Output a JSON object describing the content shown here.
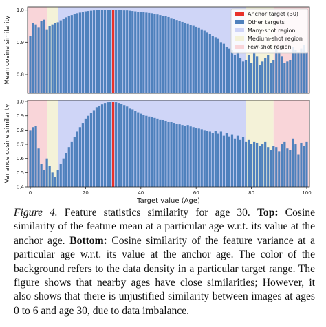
{
  "colors": {
    "bar": "#4f81bd",
    "anchor": "#e8312a",
    "many_shot": "#cfd5f7",
    "medium_shot": "#f4f2d8",
    "few_shot": "#f9d5d9"
  },
  "legend": {
    "anchor": "Anchor target (30)",
    "other": "Other targets",
    "many": "Many-shot region",
    "medium": "Medium-shot region",
    "few": "Few-shot region"
  },
  "chart_data": [
    {
      "type": "bar",
      "title": "",
      "xlabel": "",
      "ylabel": "Mean cosine similarity",
      "xlim": [
        -1,
        101
      ],
      "ylim": [
        0.74,
        1.01
      ],
      "yticks": [
        0.8,
        0.9,
        1.0
      ],
      "ytick_labels": [
        "0.8",
        "0.9",
        "1.0"
      ],
      "anchor_x": 30,
      "regions": [
        {
          "name": "Few-shot region",
          "from": -1,
          "to": 6
        },
        {
          "name": "Medium-shot region",
          "from": 6,
          "to": 10
        },
        {
          "name": "Many-shot region",
          "from": 10,
          "to": 78
        },
        {
          "name": "Medium-shot region",
          "from": 78,
          "to": 88
        },
        {
          "name": "Few-shot region",
          "from": 88,
          "to": 101
        }
      ],
      "series": [
        {
          "name": "Other targets",
          "x": [
            0,
            1,
            2,
            3,
            4,
            5,
            6,
            7,
            8,
            9,
            10,
            11,
            12,
            13,
            14,
            15,
            16,
            17,
            18,
            19,
            20,
            21,
            22,
            23,
            24,
            25,
            26,
            27,
            28,
            29,
            30,
            31,
            32,
            33,
            34,
            35,
            36,
            37,
            38,
            39,
            40,
            41,
            42,
            43,
            44,
            45,
            46,
            47,
            48,
            49,
            50,
            51,
            52,
            53,
            54,
            55,
            56,
            57,
            58,
            59,
            60,
            61,
            62,
            63,
            64,
            65,
            66,
            67,
            68,
            69,
            70,
            71,
            72,
            73,
            74,
            75,
            76,
            77,
            78,
            79,
            80,
            81,
            82,
            83,
            84,
            85,
            86,
            87,
            88,
            89,
            90,
            91,
            92,
            93,
            94,
            95,
            96,
            97,
            98,
            99,
            100
          ],
          "values": [
            0.92,
            0.96,
            0.955,
            0.945,
            0.965,
            0.97,
            0.94,
            0.95,
            0.955,
            0.96,
            0.962,
            0.968,
            0.973,
            0.977,
            0.981,
            0.984,
            0.987,
            0.99,
            0.992,
            0.994,
            0.996,
            0.997,
            0.998,
            0.999,
            1.0,
            1.0,
            1.0,
            1.0,
            1.0,
            1.0,
            1.0,
            1.0,
            1.0,
            1.0,
            0.999,
            0.999,
            0.998,
            0.997,
            0.996,
            0.995,
            0.994,
            0.993,
            0.992,
            0.991,
            0.99,
            0.988,
            0.986,
            0.984,
            0.982,
            0.98,
            0.978,
            0.975,
            0.972,
            0.969,
            0.966,
            0.963,
            0.96,
            0.957,
            0.954,
            0.951,
            0.948,
            0.944,
            0.94,
            0.936,
            0.93,
            0.926,
            0.92,
            0.915,
            0.91,
            0.9,
            0.895,
            0.885,
            0.88,
            0.875,
            0.86,
            0.87,
            0.85,
            0.84,
            0.845,
            0.86,
            0.835,
            0.87,
            0.855,
            0.83,
            0.84,
            0.85,
            0.86,
            0.835,
            0.845,
            0.88,
            0.87,
            0.855,
            0.835,
            0.84,
            0.845,
            0.885,
            0.875,
            0.87,
            0.88,
            0.89,
            0.87
          ]
        }
      ]
    },
    {
      "type": "bar",
      "title": "",
      "xlabel": "Target value (Age)",
      "ylabel": "Variance cosine similarity",
      "xlim": [
        -1,
        101
      ],
      "ylim": [
        0.4,
        1.01
      ],
      "yticks": [
        0.4,
        0.5,
        0.6,
        0.7,
        0.8,
        0.9,
        1.0
      ],
      "ytick_labels": [
        "0.4",
        "0.5",
        "0.6",
        "0.7",
        "0.8",
        "0.9",
        "1.0"
      ],
      "xticks": [
        0,
        20,
        40,
        60,
        80,
        100
      ],
      "xtick_labels": [
        "0",
        "20",
        "40",
        "60",
        "80",
        "100"
      ],
      "anchor_x": 30,
      "regions": [
        {
          "name": "Few-shot region",
          "from": -1,
          "to": 6
        },
        {
          "name": "Medium-shot region",
          "from": 6,
          "to": 10
        },
        {
          "name": "Many-shot region",
          "from": 10,
          "to": 78
        },
        {
          "name": "Medium-shot region",
          "from": 78,
          "to": 88
        },
        {
          "name": "Few-shot region",
          "from": 88,
          "to": 101
        }
      ],
      "series": [
        {
          "name": "Other targets",
          "x": [
            0,
            1,
            2,
            3,
            4,
            5,
            6,
            7,
            8,
            9,
            10,
            11,
            12,
            13,
            14,
            15,
            16,
            17,
            18,
            19,
            20,
            21,
            22,
            23,
            24,
            25,
            26,
            27,
            28,
            29,
            30,
            31,
            32,
            33,
            34,
            35,
            36,
            37,
            38,
            39,
            40,
            41,
            42,
            43,
            44,
            45,
            46,
            47,
            48,
            49,
            50,
            51,
            52,
            53,
            54,
            55,
            56,
            57,
            58,
            59,
            60,
            61,
            62,
            63,
            64,
            65,
            66,
            67,
            68,
            69,
            70,
            71,
            72,
            73,
            74,
            75,
            76,
            77,
            78,
            79,
            80,
            81,
            82,
            83,
            84,
            85,
            86,
            87,
            88,
            89,
            90,
            91,
            92,
            93,
            94,
            95,
            96,
            97,
            98,
            99,
            100
          ],
          "values": [
            0.8,
            0.82,
            0.83,
            0.67,
            0.56,
            0.52,
            0.6,
            0.55,
            0.5,
            0.47,
            0.52,
            0.56,
            0.6,
            0.64,
            0.68,
            0.72,
            0.75,
            0.79,
            0.82,
            0.85,
            0.88,
            0.9,
            0.92,
            0.94,
            0.96,
            0.97,
            0.98,
            0.99,
            0.995,
            0.998,
            1.0,
            0.995,
            0.99,
            0.985,
            0.975,
            0.965,
            0.955,
            0.945,
            0.935,
            0.925,
            0.915,
            0.905,
            0.9,
            0.895,
            0.89,
            0.885,
            0.88,
            0.875,
            0.87,
            0.865,
            0.86,
            0.855,
            0.85,
            0.845,
            0.84,
            0.835,
            0.83,
            0.835,
            0.825,
            0.82,
            0.815,
            0.81,
            0.805,
            0.8,
            0.795,
            0.79,
            0.78,
            0.795,
            0.775,
            0.79,
            0.76,
            0.78,
            0.755,
            0.77,
            0.74,
            0.76,
            0.73,
            0.75,
            0.72,
            0.73,
            0.705,
            0.72,
            0.71,
            0.69,
            0.7,
            0.72,
            0.68,
            0.66,
            0.69,
            0.68,
            0.65,
            0.7,
            0.72,
            0.67,
            0.66,
            0.74,
            0.7,
            0.63,
            0.71,
            0.69,
            0.72
          ]
        }
      ]
    }
  ],
  "caption": {
    "figure_label": "Figure 4.",
    "part1": " Feature statistics similarity for age 30. ",
    "top_label": "Top:",
    "part2": " Cosine similarity of the feature mean at a particular age w.r.t. its value at the anchor age. ",
    "bottom_label": "Bottom:",
    "part3": " Cosine similarity of the feature variance at a particular age w.r.t. its value at the anchor age. The color of the background refers to the data density in a particular target range. The figure shows that nearby ages have close similarities; However, it also shows that there is unjustified similarity between images at ages 0 to 6 and age 30, due to data imbalance."
  }
}
